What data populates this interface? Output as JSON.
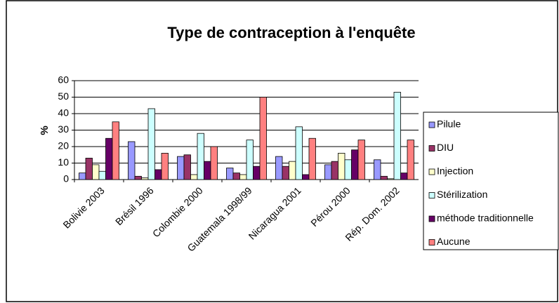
{
  "chart_data": {
    "type": "bar",
    "title": "Type de contraception à l'enquête",
    "y_label": "%",
    "categories": [
      "Bolivie 2003",
      "Brésil 1996",
      "Colombie 2000",
      "Guatemala 1998/99",
      "Nicaragua 2001",
      "Pérou 2000",
      "Rép. Dom. 2002"
    ],
    "series": [
      {
        "name": "Pilule",
        "color": "#9999ff",
        "values": [
          4,
          23,
          14,
          7,
          14,
          9,
          12
        ]
      },
      {
        "name": "DIU",
        "color": "#993366",
        "values": [
          13,
          2,
          15,
          4,
          8,
          11,
          2
        ]
      },
      {
        "name": "Injection",
        "color": "#ffffcc",
        "values": [
          9,
          1,
          3,
          3,
          11,
          16,
          0.5
        ]
      },
      {
        "name": "Stérilization",
        "color": "#ccffff",
        "values": [
          5,
          43,
          28,
          24,
          32,
          12,
          53
        ]
      },
      {
        "name": "méthode traditionnelle",
        "color": "#660066",
        "values": [
          25,
          6,
          11,
          8,
          3,
          18,
          4
        ]
      },
      {
        "name": "Aucune",
        "color": "#ff8080",
        "values": [
          35,
          16,
          20,
          50,
          25,
          24,
          24
        ]
      }
    ],
    "ylim": [
      0,
      60
    ],
    "yticks": [
      0,
      10,
      20,
      30,
      40,
      50,
      60
    ],
    "grid": true,
    "legend": "right"
  }
}
